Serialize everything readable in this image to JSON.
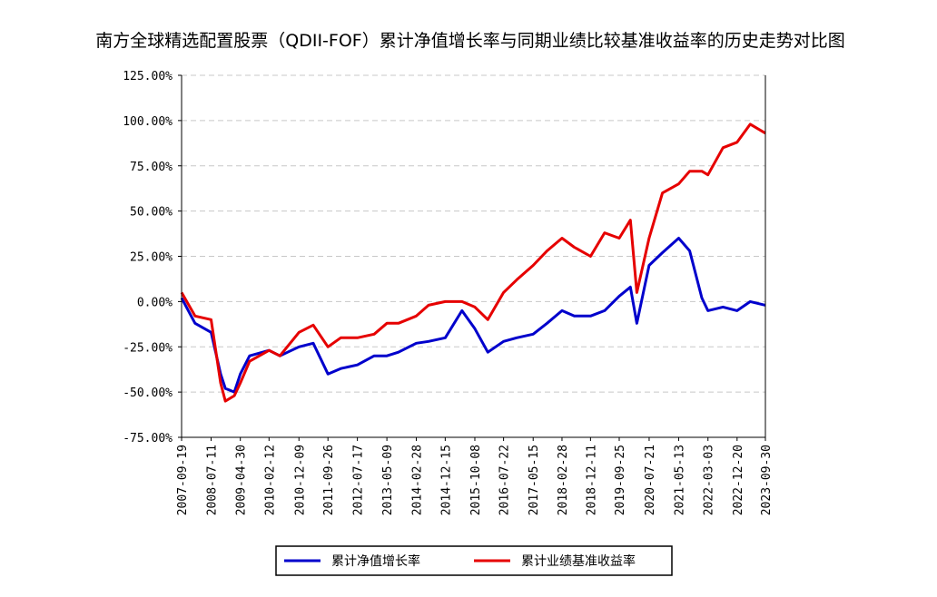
{
  "chart_data": {
    "type": "line",
    "title": "南方全球精选配置股票（QDII-FOF）累计净值增长率与同期业绩比较基准收益率的历史走势对比图",
    "xlabel": "",
    "ylabel": "",
    "ylim": [
      -75,
      125
    ],
    "yticks": [
      125,
      100,
      75,
      50,
      25,
      0,
      -25,
      -50,
      -75
    ],
    "ytick_labels": [
      "125.00%",
      "100.00%",
      "75.00%",
      "50.00%",
      "25.00%",
      "0.00%",
      "-25.00%",
      "-50.00%",
      "-75.00%"
    ],
    "x_tick_labels": [
      "2007-09-19",
      "2008-07-11",
      "2009-04-30",
      "2010-02-12",
      "2010-12-09",
      "2011-09-26",
      "2012-07-17",
      "2013-05-09",
      "2014-02-28",
      "2014-12-15",
      "2015-10-08",
      "2016-07-22",
      "2017-05-15",
      "2018-02-28",
      "2018-12-11",
      "2019-09-25",
      "2020-07-21",
      "2021-05-13",
      "2022-03-03",
      "2022-12-20",
      "2023-09-30"
    ],
    "grid": true,
    "legend_position": "bottom",
    "x": [
      "2007-09-19",
      "2008-02-01",
      "2008-07-11",
      "2008-10-15",
      "2008-12-01",
      "2009-03-01",
      "2009-04-30",
      "2009-08-01",
      "2010-02-12",
      "2010-06-01",
      "2010-12-09",
      "2011-05-01",
      "2011-09-26",
      "2012-02-01",
      "2012-07-17",
      "2013-01-01",
      "2013-05-09",
      "2013-09-01",
      "2014-02-28",
      "2014-07-01",
      "2014-12-15",
      "2015-06-01",
      "2015-10-08",
      "2016-02-15",
      "2016-07-22",
      "2016-12-01",
      "2017-05-15",
      "2017-10-01",
      "2018-02-28",
      "2018-07-01",
      "2018-12-11",
      "2019-05-01",
      "2019-09-25",
      "2020-01-15",
      "2020-03-20",
      "2020-07-21",
      "2020-12-01",
      "2021-05-13",
      "2021-09-01",
      "2022-01-01",
      "2022-03-03",
      "2022-08-01",
      "2022-12-20",
      "2023-05-01",
      "2023-09-30"
    ],
    "series": [
      {
        "name": "累计净值增长率",
        "color": "#0000cc",
        "values": [
          2,
          -12,
          -17,
          -40,
          -48,
          -50,
          -40,
          -30,
          -27,
          -30,
          -25,
          -23,
          -40,
          -37,
          -35,
          -30,
          -30,
          -28,
          -23,
          -22,
          -20,
          -5,
          -15,
          -28,
          -22,
          -20,
          -18,
          -12,
          -5,
          -8,
          -8,
          -5,
          3,
          8,
          -12,
          20,
          27,
          35,
          28,
          2,
          -5,
          -3,
          -5,
          0,
          -2
        ]
      },
      {
        "name": "累计业绩基准收益率",
        "color": "#e60000",
        "values": [
          5,
          -8,
          -10,
          -45,
          -55,
          -52,
          -45,
          -33,
          -27,
          -30,
          -17,
          -13,
          -25,
          -20,
          -20,
          -18,
          -12,
          -12,
          -8,
          -2,
          0,
          0,
          -3,
          -10,
          5,
          12,
          20,
          28,
          35,
          30,
          25,
          38,
          35,
          45,
          5,
          35,
          60,
          65,
          72,
          72,
          70,
          85,
          88,
          98,
          93
        ]
      }
    ]
  }
}
